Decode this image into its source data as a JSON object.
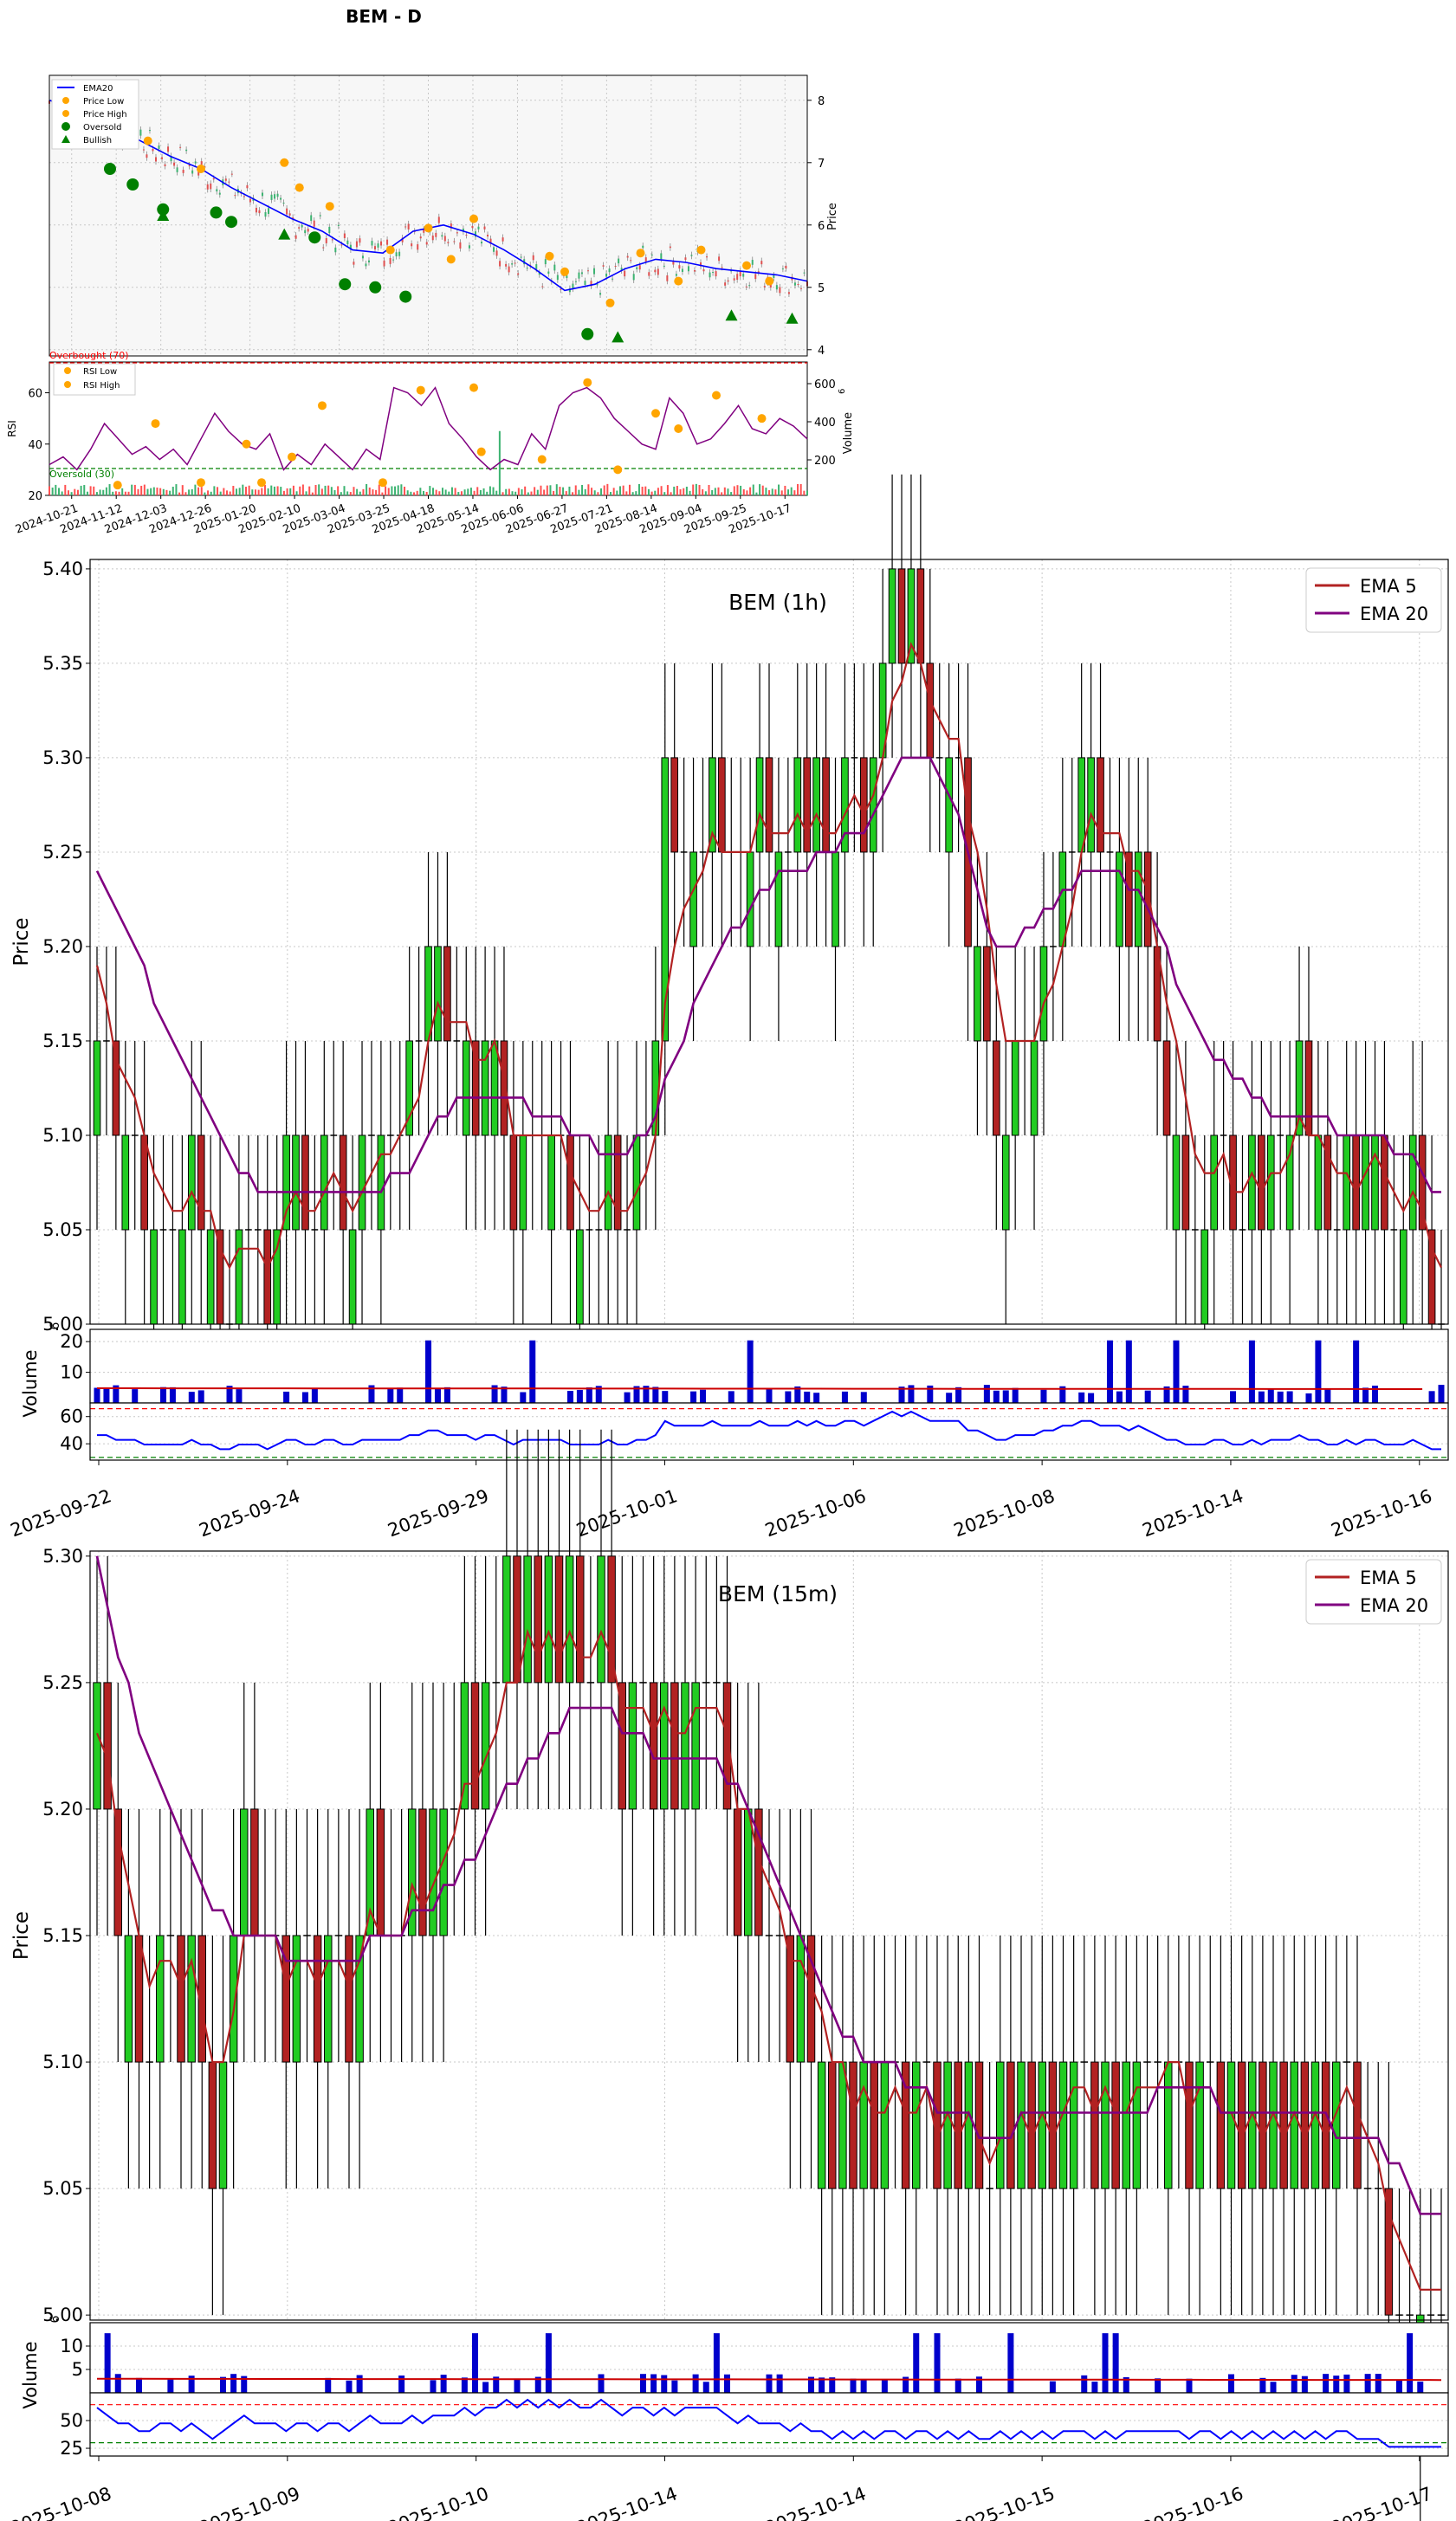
{
  "figure_title": "BEM - D",
  "colors": {
    "up": "#2ecc2e",
    "down": "#b22222",
    "ema_blue": "#0000ff",
    "ema5": "#b22222",
    "ema20": "#800080",
    "marker_orange": "#ffa500",
    "marker_green": "#008000",
    "rsi_purple": "#800080",
    "vol_blue": "#0000cc",
    "overbought": "#ff0000",
    "oversold": "#008000"
  },
  "chart_data": [
    {
      "id": "daily",
      "type": "candlestick",
      "title": "BEM - D",
      "ylabel": "Price",
      "ylim": [
        3.9,
        8.4
      ],
      "yticks": [
        "4",
        "5",
        "6",
        "7",
        "8"
      ],
      "legend": {
        "position": "top-left",
        "entries": [
          "EMA20",
          "Price Low",
          "Price High",
          "Oversold",
          "Bullish"
        ]
      },
      "x_tick_labels": [
        "2024-10-21",
        "2024-11-12",
        "2024-12-03",
        "2024-12-26",
        "2025-01-20",
        "2025-02-10",
        "2025-03-04",
        "2025-03-25",
        "2025-04-18",
        "2025-05-14",
        "2025-06-06",
        "2025-06-27",
        "2025-07-21",
        "2025-08-14",
        "2025-09-04",
        "2025-09-25",
        "2025-10-17"
      ],
      "ema20": [
        8.0,
        7.85,
        7.6,
        7.35,
        7.1,
        6.9,
        6.6,
        6.35,
        6.1,
        5.9,
        5.6,
        5.55,
        5.9,
        6.0,
        5.85,
        5.6,
        5.3,
        4.95,
        5.05,
        5.3,
        5.45,
        5.4,
        5.3,
        5.25,
        5.2,
        5.1
      ],
      "price_low": [
        [
          0.03,
          7.5
        ],
        [
          0.13,
          7.35
        ],
        [
          0.2,
          6.9
        ],
        [
          0.33,
          6.6
        ],
        [
          0.37,
          6.3
        ],
        [
          0.53,
          5.45
        ],
        [
          0.68,
          5.25
        ],
        [
          0.74,
          4.75
        ],
        [
          0.83,
          5.1
        ],
        [
          0.95,
          5.1
        ]
      ],
      "price_high": [
        [
          0.1,
          7.3
        ],
        [
          0.31,
          7.0
        ],
        [
          0.45,
          5.6
        ],
        [
          0.5,
          5.95
        ],
        [
          0.56,
          6.1
        ],
        [
          0.66,
          5.5
        ],
        [
          0.78,
          5.55
        ],
        [
          0.86,
          5.6
        ],
        [
          0.92,
          5.35
        ]
      ],
      "oversold": [
        [
          0.08,
          6.9
        ],
        [
          0.11,
          6.65
        ],
        [
          0.15,
          6.25
        ],
        [
          0.22,
          6.2
        ],
        [
          0.24,
          6.05
        ],
        [
          0.35,
          5.8
        ],
        [
          0.39,
          5.05
        ],
        [
          0.43,
          5.0
        ],
        [
          0.47,
          4.85
        ],
        [
          0.71,
          4.25
        ]
      ],
      "bullish": [
        [
          0.15,
          6.15
        ],
        [
          0.31,
          5.85
        ],
        [
          0.75,
          4.2
        ],
        [
          0.9,
          4.55
        ],
        [
          0.98,
          4.5
        ]
      ]
    },
    {
      "id": "daily_rsi",
      "type": "line",
      "ylabel": "RSI",
      "ylim": [
        20,
        72
      ],
      "yticks": [
        "20",
        "40",
        "60"
      ],
      "overbought_label": "Overbought (70)",
      "oversold_label": "Oversold (30)",
      "legend_entries": [
        "RSI Low",
        "RSI High"
      ],
      "volume_label": "Volume",
      "volume_exponent": "6",
      "volume_yticks": [
        "200",
        "400",
        "600"
      ],
      "rsi": [
        32,
        35,
        30,
        38,
        48,
        42,
        36,
        39,
        34,
        38,
        32,
        42,
        52,
        45,
        40,
        38,
        44,
        30,
        36,
        32,
        40,
        35,
        30,
        38,
        34,
        62,
        60,
        55,
        62,
        48,
        42,
        35,
        30,
        34,
        32,
        44,
        38,
        55,
        60,
        62,
        58,
        50,
        45,
        40,
        38,
        58,
        52,
        40,
        42,
        48,
        55,
        46,
        44,
        50,
        47,
        42
      ],
      "rsi_low": [
        [
          0.09,
          24
        ],
        [
          0.2,
          25
        ],
        [
          0.28,
          25
        ],
        [
          0.32,
          35
        ],
        [
          0.44,
          25
        ],
        [
          0.57,
          37
        ],
        [
          0.65,
          34
        ],
        [
          0.75,
          30
        ],
        [
          0.83,
          46
        ],
        [
          0.94,
          50
        ]
      ],
      "rsi_high": [
        [
          0.14,
          48
        ],
        [
          0.26,
          40
        ],
        [
          0.36,
          55
        ],
        [
          0.49,
          61
        ],
        [
          0.56,
          62
        ],
        [
          0.71,
          64
        ],
        [
          0.8,
          52
        ],
        [
          0.88,
          59
        ]
      ],
      "volume_spike_index": 57
    },
    {
      "id": "hourly",
      "type": "candlestick",
      "title": "BEM (1h)",
      "ylabel": "Price",
      "ylim": [
        5.0,
        5.405
      ],
      "yticks": [
        "5.00",
        "5.05",
        "5.10",
        "5.15",
        "5.20",
        "5.25",
        "5.30",
        "5.35",
        "5.40"
      ],
      "legend": {
        "position": "top-right",
        "entries": [
          "EMA 5",
          "EMA 20"
        ]
      },
      "x_tick_labels": [
        "2025-09-22",
        "2025-09-24",
        "2025-09-29",
        "2025-10-01",
        "2025-10-06",
        "2025-10-08",
        "2025-10-14",
        "2025-10-16"
      ],
      "closes": [
        5.15,
        5.15,
        5.1,
        5.1,
        5.1,
        5.05,
        5.05,
        5.05,
        5.05,
        5.05,
        5.1,
        5.05,
        5.05,
        5.0,
        5.0,
        5.05,
        5.05,
        5.05,
        5.0,
        5.05,
        5.1,
        5.1,
        5.05,
        5.05,
        5.1,
        5.1,
        5.05,
        5.05,
        5.1,
        5.1,
        5.1,
        5.1,
        5.1,
        5.15,
        5.15,
        5.2,
        5.2,
        5.15,
        5.15,
        5.15,
        5.1,
        5.15,
        5.15,
        5.1,
        5.05,
        5.1,
        5.1,
        5.1,
        5.1,
        5.1,
        5.05,
        5.05,
        5.05,
        5.05,
        5.1,
        5.05,
        5.05,
        5.1,
        5.1,
        5.15,
        5.3,
        5.25,
        5.25,
        5.25,
        5.25,
        5.3,
        5.25,
        5.25,
        5.25,
        5.25,
        5.3,
        5.25,
        5.25,
        5.25,
        5.3,
        5.25,
        5.3,
        5.25,
        5.25,
        5.3,
        5.3,
        5.25,
        5.3,
        5.35,
        5.4,
        5.35,
        5.4,
        5.35,
        5.3,
        5.3,
        5.3,
        5.3,
        5.2,
        5.2,
        5.15,
        5.1,
        5.1,
        5.15,
        5.15,
        5.15,
        5.2,
        5.2,
        5.25,
        5.25,
        5.3,
        5.3,
        5.25,
        5.25,
        5.25,
        5.2,
        5.25,
        5.2,
        5.15,
        5.1,
        5.1,
        5.05,
        5.05,
        5.05,
        5.1,
        5.1,
        5.05,
        5.05,
        5.1,
        5.05,
        5.1,
        5.1,
        5.1,
        5.15,
        5.1,
        5.1,
        5.05,
        5.05,
        5.1,
        5.05,
        5.1,
        5.1,
        5.05,
        5.05,
        5.05,
        5.1,
        5.05,
        5.0,
        5.0
      ],
      "ema5": [
        5.19,
        5.17,
        5.14,
        5.13,
        5.12,
        5.1,
        5.08,
        5.07,
        5.06,
        5.06,
        5.07,
        5.06,
        5.06,
        5.04,
        5.03,
        5.04,
        5.04,
        5.04,
        5.03,
        5.04,
        5.06,
        5.07,
        5.06,
        5.06,
        5.07,
        5.08,
        5.07,
        5.06,
        5.07,
        5.08,
        5.09,
        5.09,
        5.1,
        5.11,
        5.12,
        5.15,
        5.17,
        5.16,
        5.16,
        5.16,
        5.14,
        5.14,
        5.15,
        5.13,
        5.1,
        5.1,
        5.1,
        5.1,
        5.1,
        5.1,
        5.08,
        5.07,
        5.06,
        5.06,
        5.07,
        5.06,
        5.06,
        5.07,
        5.08,
        5.1,
        5.17,
        5.2,
        5.22,
        5.23,
        5.24,
        5.26,
        5.25,
        5.25,
        5.25,
        5.25,
        5.27,
        5.26,
        5.26,
        5.26,
        5.27,
        5.26,
        5.27,
        5.26,
        5.26,
        5.27,
        5.28,
        5.27,
        5.28,
        5.3,
        5.33,
        5.34,
        5.36,
        5.35,
        5.33,
        5.32,
        5.31,
        5.31,
        5.27,
        5.25,
        5.22,
        5.18,
        5.15,
        5.15,
        5.15,
        5.15,
        5.17,
        5.18,
        5.2,
        5.22,
        5.25,
        5.27,
        5.26,
        5.26,
        5.26,
        5.24,
        5.24,
        5.23,
        5.2,
        5.17,
        5.15,
        5.12,
        5.09,
        5.08,
        5.08,
        5.09,
        5.07,
        5.07,
        5.08,
        5.07,
        5.08,
        5.08,
        5.09,
        5.11,
        5.1,
        5.1,
        5.09,
        5.08,
        5.08,
        5.07,
        5.08,
        5.09,
        5.08,
        5.07,
        5.06,
        5.07,
        5.06,
        5.04,
        5.03
      ],
      "ema20": [
        5.24,
        5.23,
        5.22,
        5.21,
        5.2,
        5.19,
        5.17,
        5.16,
        5.15,
        5.14,
        5.13,
        5.12,
        5.11,
        5.1,
        5.09,
        5.08,
        5.08,
        5.07,
        5.07,
        5.07,
        5.07,
        5.07,
        5.07,
        5.07,
        5.07,
        5.07,
        5.07,
        5.07,
        5.07,
        5.07,
        5.07,
        5.08,
        5.08,
        5.08,
        5.09,
        5.1,
        5.11,
        5.11,
        5.12,
        5.12,
        5.12,
        5.12,
        5.12,
        5.12,
        5.12,
        5.12,
        5.11,
        5.11,
        5.11,
        5.11,
        5.1,
        5.1,
        5.1,
        5.09,
        5.09,
        5.09,
        5.09,
        5.1,
        5.1,
        5.11,
        5.13,
        5.14,
        5.15,
        5.17,
        5.18,
        5.19,
        5.2,
        5.21,
        5.21,
        5.22,
        5.23,
        5.23,
        5.24,
        5.24,
        5.24,
        5.24,
        5.25,
        5.25,
        5.25,
        5.26,
        5.26,
        5.26,
        5.27,
        5.28,
        5.29,
        5.3,
        5.3,
        5.3,
        5.3,
        5.29,
        5.28,
        5.27,
        5.25,
        5.23,
        5.21,
        5.2,
        5.2,
        5.2,
        5.21,
        5.21,
        5.22,
        5.22,
        5.23,
        5.23,
        5.24,
        5.24,
        5.24,
        5.24,
        5.24,
        5.23,
        5.23,
        5.22,
        5.21,
        5.2,
        5.18,
        5.17,
        5.16,
        5.15,
        5.14,
        5.14,
        5.13,
        5.13,
        5.12,
        5.12,
        5.11,
        5.11,
        5.11,
        5.11,
        5.11,
        5.11,
        5.11,
        5.1,
        5.1,
        5.1,
        5.1,
        5.1,
        5.1,
        5.09,
        5.09,
        5.09,
        5.08,
        5.07,
        5.07
      ],
      "volume_label": "Volume",
      "volume_exponent": "6",
      "volume_yticks": [
        "10",
        "20"
      ],
      "volume_ylim": [
        0,
        24
      ],
      "rsi_yticks": [
        "40",
        "60"
      ],
      "rsi_ylim": [
        28,
        70
      ],
      "rsi_overbought": 70,
      "rsi_oversold": 30
    },
    {
      "id": "m15",
      "type": "candlestick",
      "title": "BEM (15m)",
      "ylabel": "Price",
      "ylim": [
        4.998,
        5.302
      ],
      "yticks": [
        "5.00",
        "5.05",
        "5.10",
        "5.15",
        "5.20",
        "5.25",
        "5.30"
      ],
      "legend": {
        "position": "top-right",
        "entries": [
          "EMA 5",
          "EMA 20"
        ]
      },
      "x_tick_labels": [
        "2025-10-08",
        "2025-10-09",
        "2025-10-10",
        "2025-10-14",
        "2025-10-14",
        "2025-10-15",
        "2025-10-16",
        "2025-10-17"
      ],
      "closes": [
        5.25,
        5.2,
        5.15,
        5.15,
        5.1,
        5.1,
        5.15,
        5.15,
        5.1,
        5.15,
        5.1,
        5.05,
        5.1,
        5.15,
        5.2,
        5.15,
        5.15,
        5.15,
        5.1,
        5.15,
        5.15,
        5.1,
        5.15,
        5.15,
        5.1,
        5.15,
        5.2,
        5.15,
        5.15,
        5.15,
        5.2,
        5.15,
        5.2,
        5.2,
        5.2,
        5.25,
        5.2,
        5.25,
        5.25,
        5.3,
        5.25,
        5.3,
        5.25,
        5.3,
        5.25,
        5.3,
        5.25,
        5.25,
        5.3,
        5.25,
        5.2,
        5.25,
        5.25,
        5.2,
        5.25,
        5.2,
        5.25,
        5.25,
        5.25,
        5.25,
        5.2,
        5.15,
        5.2,
        5.15,
        5.15,
        5.15,
        5.1,
        5.15,
        5.1,
        5.1,
        5.05,
        5.1,
        5.05,
        5.1,
        5.05,
        5.1,
        5.1,
        5.05,
        5.1,
        5.1,
        5.05,
        5.1,
        5.05,
        5.1,
        5.05,
        5.05,
        5.1,
        5.05,
        5.1,
        5.05,
        5.1,
        5.05,
        5.1,
        5.1,
        5.1,
        5.05,
        5.1,
        5.05,
        5.1,
        5.1,
        5.1,
        5.1,
        5.1,
        5.1,
        5.05,
        5.1,
        5.1,
        5.05,
        5.1,
        5.05,
        5.1,
        5.05,
        5.1,
        5.05,
        5.1,
        5.05,
        5.1,
        5.05,
        5.1,
        5.1,
        5.05,
        5.05,
        5.05,
        5.0,
        5.0,
        5.0,
        5.0,
        5.0,
        5.0
      ],
      "ema5": [
        5.23,
        5.22,
        5.19,
        5.17,
        5.15,
        5.13,
        5.14,
        5.14,
        5.13,
        5.14,
        5.12,
        5.1,
        5.1,
        5.12,
        5.15,
        5.15,
        5.15,
        5.15,
        5.13,
        5.14,
        5.14,
        5.13,
        5.14,
        5.14,
        5.13,
        5.14,
        5.16,
        5.15,
        5.15,
        5.15,
        5.17,
        5.16,
        5.17,
        5.18,
        5.19,
        5.21,
        5.21,
        5.22,
        5.23,
        5.25,
        5.25,
        5.27,
        5.26,
        5.27,
        5.26,
        5.27,
        5.26,
        5.26,
        5.27,
        5.26,
        5.24,
        5.24,
        5.24,
        5.23,
        5.24,
        5.23,
        5.23,
        5.24,
        5.24,
        5.24,
        5.23,
        5.2,
        5.2,
        5.18,
        5.17,
        5.16,
        5.14,
        5.14,
        5.13,
        5.12,
        5.1,
        5.1,
        5.08,
        5.09,
        5.08,
        5.08,
        5.09,
        5.08,
        5.08,
        5.09,
        5.07,
        5.08,
        5.07,
        5.08,
        5.07,
        5.06,
        5.07,
        5.07,
        5.08,
        5.07,
        5.08,
        5.07,
        5.08,
        5.09,
        5.09,
        5.08,
        5.09,
        5.08,
        5.08,
        5.09,
        5.09,
        5.09,
        5.1,
        5.1,
        5.08,
        5.09,
        5.09,
        5.08,
        5.08,
        5.07,
        5.08,
        5.07,
        5.08,
        5.07,
        5.08,
        5.07,
        5.08,
        5.07,
        5.08,
        5.09,
        5.08,
        5.07,
        5.06,
        5.04,
        5.03,
        5.02,
        5.01,
        5.01,
        5.01
      ],
      "ema20": [
        5.3,
        5.28,
        5.26,
        5.25,
        5.23,
        5.22,
        5.21,
        5.2,
        5.19,
        5.18,
        5.17,
        5.16,
        5.16,
        5.15,
        5.15,
        5.15,
        5.15,
        5.15,
        5.14,
        5.14,
        5.14,
        5.14,
        5.14,
        5.14,
        5.14,
        5.14,
        5.15,
        5.15,
        5.15,
        5.15,
        5.16,
        5.16,
        5.16,
        5.17,
        5.17,
        5.18,
        5.18,
        5.19,
        5.2,
        5.21,
        5.21,
        5.22,
        5.22,
        5.23,
        5.23,
        5.24,
        5.24,
        5.24,
        5.24,
        5.24,
        5.23,
        5.23,
        5.23,
        5.22,
        5.22,
        5.22,
        5.22,
        5.22,
        5.22,
        5.22,
        5.21,
        5.21,
        5.2,
        5.19,
        5.18,
        5.17,
        5.16,
        5.15,
        5.14,
        5.13,
        5.12,
        5.11,
        5.11,
        5.1,
        5.1,
        5.1,
        5.1,
        5.09,
        5.09,
        5.09,
        5.08,
        5.08,
        5.08,
        5.08,
        5.07,
        5.07,
        5.07,
        5.07,
        5.08,
        5.08,
        5.08,
        5.08,
        5.08,
        5.08,
        5.08,
        5.08,
        5.08,
        5.08,
        5.08,
        5.08,
        5.08,
        5.09,
        5.09,
        5.09,
        5.09,
        5.09,
        5.09,
        5.08,
        5.08,
        5.08,
        5.08,
        5.08,
        5.08,
        5.08,
        5.08,
        5.08,
        5.08,
        5.08,
        5.07,
        5.07,
        5.07,
        5.07,
        5.07,
        5.06,
        5.06,
        5.05,
        5.04,
        5.04,
        5.04
      ],
      "volume_label": "Volume",
      "volume_exponent": "6",
      "volume_yticks": [
        "5",
        "10"
      ],
      "volume_ylim": [
        0,
        15
      ],
      "rsi_yticks": [
        "25",
        "50"
      ],
      "rsi_ylim": [
        18,
        75
      ],
      "rsi_overbought": 70,
      "rsi_oversold": 30
    }
  ]
}
